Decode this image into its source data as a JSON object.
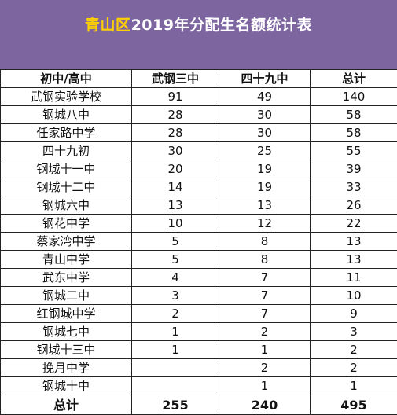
{
  "banner": {
    "title_highlight": "青山区",
    "title_rest": "2019年分配生名额统计表"
  },
  "table": {
    "headers": [
      "初中/高中",
      "武钢三中",
      "四十九中",
      "总计"
    ],
    "rows": [
      {
        "school": "武钢实验学校",
        "wg3": "91",
        "s49": "49",
        "total": "140"
      },
      {
        "school": "钢城八中",
        "wg3": "28",
        "s49": "30",
        "total": "58"
      },
      {
        "school": "任家路中学",
        "wg3": "28",
        "s49": "30",
        "total": "58"
      },
      {
        "school": "四十九初",
        "wg3": "30",
        "s49": "25",
        "total": "55"
      },
      {
        "school": "钢城十一中",
        "wg3": "20",
        "s49": "19",
        "total": "39"
      },
      {
        "school": "钢城十二中",
        "wg3": "14",
        "s49": "19",
        "total": "33"
      },
      {
        "school": "钢城六中",
        "wg3": "13",
        "s49": "13",
        "total": "26"
      },
      {
        "school": "钢花中学",
        "wg3": "10",
        "s49": "12",
        "total": "22"
      },
      {
        "school": "蔡家湾中学",
        "wg3": "5",
        "s49": "8",
        "total": "13"
      },
      {
        "school": "青山中学",
        "wg3": "5",
        "s49": "8",
        "total": "13"
      },
      {
        "school": "武东中学",
        "wg3": "4",
        "s49": "7",
        "total": "11"
      },
      {
        "school": "钢城二中",
        "wg3": "3",
        "s49": "7",
        "total": "10"
      },
      {
        "school": "红钢城中学",
        "wg3": "2",
        "s49": "7",
        "total": "9"
      },
      {
        "school": "钢城七中",
        "wg3": "1",
        "s49": "2",
        "total": "3"
      },
      {
        "school": "钢城十三中",
        "wg3": "1",
        "s49": "1",
        "total": "2"
      },
      {
        "school": "挽月中学",
        "wg3": "",
        "s49": "2",
        "total": "2"
      },
      {
        "school": "钢城十中",
        "wg3": "",
        "s49": "1",
        "total": "1"
      }
    ],
    "total_row": {
      "label": "总计",
      "wg3": "255",
      "s49": "240",
      "total": "495"
    }
  }
}
